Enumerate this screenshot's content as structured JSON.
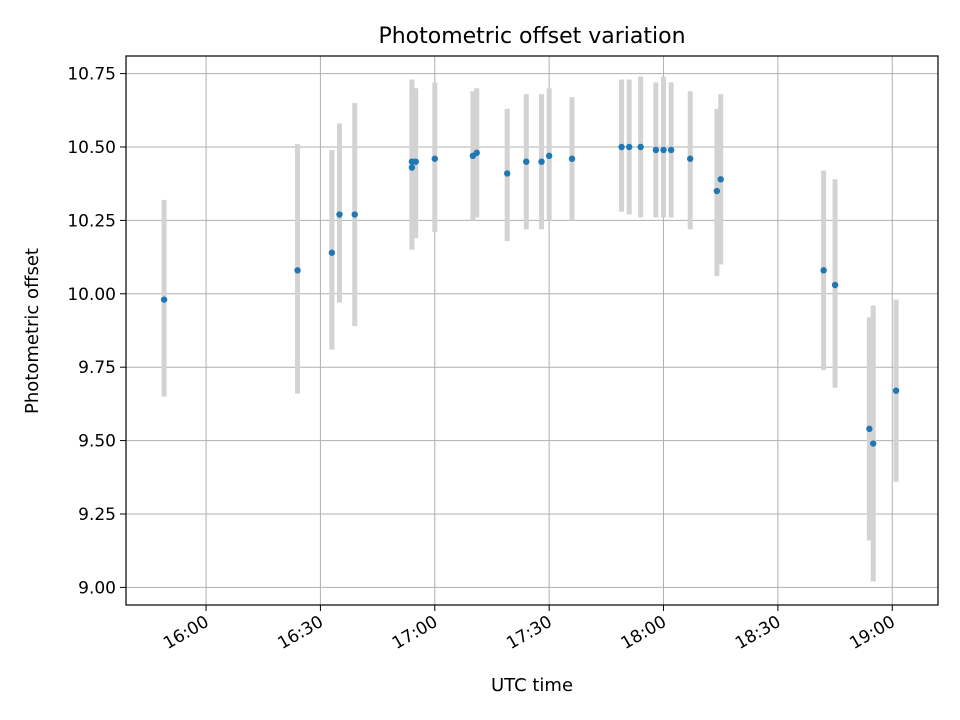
{
  "chart_data": {
    "type": "scatter",
    "title": "Photometric offset variation",
    "xlabel": "UTC time",
    "ylabel": "Photometric offset",
    "xlim": [
      "15:39",
      "19:12"
    ],
    "ylim": [
      8.94,
      10.81
    ],
    "x_ticks": [
      "16:00",
      "16:30",
      "17:00",
      "17:30",
      "18:00",
      "18:30",
      "19:00"
    ],
    "y_ticks": [
      "9.00",
      "9.25",
      "9.50",
      "9.75",
      "10.00",
      "10.25",
      "10.50",
      "10.75"
    ],
    "grid": true,
    "marker_color": "#1f77b4",
    "errorbar_color": "#d3d3d3",
    "points": [
      {
        "x": "15:49",
        "y": 9.98,
        "ylow": 9.65,
        "yhigh": 10.32
      },
      {
        "x": "16:24",
        "y": 10.08,
        "ylow": 9.66,
        "yhigh": 10.51
      },
      {
        "x": "16:33",
        "y": 10.14,
        "ylow": 9.81,
        "yhigh": 10.49
      },
      {
        "x": "16:35",
        "y": 10.27,
        "ylow": 9.97,
        "yhigh": 10.58
      },
      {
        "x": "16:39",
        "y": 10.27,
        "ylow": 9.89,
        "yhigh": 10.65
      },
      {
        "x": "16:54",
        "y": 10.43,
        "ylow": 10.15,
        "yhigh": 10.72
      },
      {
        "x": "16:54",
        "y": 10.45,
        "ylow": 10.17,
        "yhigh": 10.73
      },
      {
        "x": "16:55",
        "y": 10.45,
        "ylow": 10.19,
        "yhigh": 10.7
      },
      {
        "x": "17:00",
        "y": 10.46,
        "ylow": 10.21,
        "yhigh": 10.72
      },
      {
        "x": "17:10",
        "y": 10.47,
        "ylow": 10.25,
        "yhigh": 10.69
      },
      {
        "x": "17:11",
        "y": 10.48,
        "ylow": 10.26,
        "yhigh": 10.7
      },
      {
        "x": "17:19",
        "y": 10.41,
        "ylow": 10.18,
        "yhigh": 10.63
      },
      {
        "x": "17:24",
        "y": 10.45,
        "ylow": 10.22,
        "yhigh": 10.68
      },
      {
        "x": "17:28",
        "y": 10.45,
        "ylow": 10.22,
        "yhigh": 10.68
      },
      {
        "x": "17:30",
        "y": 10.47,
        "ylow": 10.25,
        "yhigh": 10.7
      },
      {
        "x": "17:36",
        "y": 10.46,
        "ylow": 10.25,
        "yhigh": 10.67
      },
      {
        "x": "17:49",
        "y": 10.5,
        "ylow": 10.28,
        "yhigh": 10.73
      },
      {
        "x": "17:51",
        "y": 10.5,
        "ylow": 10.27,
        "yhigh": 10.73
      },
      {
        "x": "17:54",
        "y": 10.5,
        "ylow": 10.26,
        "yhigh": 10.74
      },
      {
        "x": "17:58",
        "y": 10.49,
        "ylow": 10.26,
        "yhigh": 10.72
      },
      {
        "x": "18:00",
        "y": 10.49,
        "ylow": 10.26,
        "yhigh": 10.74
      },
      {
        "x": "18:02",
        "y": 10.49,
        "ylow": 10.26,
        "yhigh": 10.72
      },
      {
        "x": "18:07",
        "y": 10.46,
        "ylow": 10.22,
        "yhigh": 10.69
      },
      {
        "x": "18:14",
        "y": 10.35,
        "ylow": 10.06,
        "yhigh": 10.63
      },
      {
        "x": "18:15",
        "y": 10.39,
        "ylow": 10.1,
        "yhigh": 10.68
      },
      {
        "x": "18:42",
        "y": 10.08,
        "ylow": 9.74,
        "yhigh": 10.42
      },
      {
        "x": "18:45",
        "y": 10.03,
        "ylow": 9.68,
        "yhigh": 10.39
      },
      {
        "x": "18:54",
        "y": 9.54,
        "ylow": 9.16,
        "yhigh": 9.92
      },
      {
        "x": "18:55",
        "y": 9.49,
        "ylow": 9.02,
        "yhigh": 9.96
      },
      {
        "x": "19:01",
        "y": 9.67,
        "ylow": 9.36,
        "yhigh": 9.98
      }
    ]
  }
}
